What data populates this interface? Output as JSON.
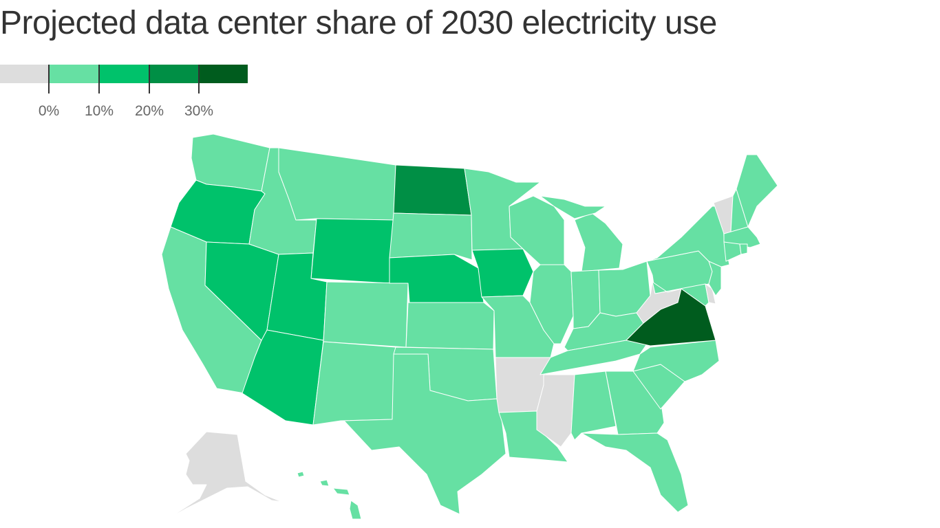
{
  "title": "Projected data center share of 2030 electricity use",
  "legend": {
    "bins": [
      {
        "key": "none",
        "color": "#dddddd"
      },
      {
        "key": "0-10",
        "color": "#66e0a3"
      },
      {
        "key": "10-20",
        "color": "#00c26b"
      },
      {
        "key": "20-30",
        "color": "#008f45"
      },
      {
        "key": "30+",
        "color": "#005c1e"
      }
    ],
    "tick_labels": [
      "0%",
      "10%",
      "20%",
      "30%"
    ]
  },
  "states": {
    "WA": "0-10",
    "OR": "10-20",
    "CA": "0-10",
    "NV": "10-20",
    "ID": "0-10",
    "MT": "0-10",
    "WY": "10-20",
    "UT": "10-20",
    "AZ": "10-20",
    "CO": "0-10",
    "NM": "0-10",
    "ND": "20-30",
    "SD": "0-10",
    "NE": "10-20",
    "KS": "0-10",
    "OK": "0-10",
    "TX": "0-10",
    "MN": "0-10",
    "IA": "10-20",
    "MO": "0-10",
    "AR": "none",
    "LA": "0-10",
    "WI": "0-10",
    "IL": "0-10",
    "MI": "0-10",
    "IN": "0-10",
    "OH": "0-10",
    "KY": "0-10",
    "TN": "0-10",
    "MS": "none",
    "AL": "0-10",
    "GA": "0-10",
    "FL": "0-10",
    "SC": "0-10",
    "NC": "0-10",
    "VA": "30+",
    "WV": "none",
    "PA": "0-10",
    "MD": "0-10",
    "DE": "none",
    "NJ": "0-10",
    "NY": "0-10",
    "VT": "none",
    "NH": "0-10",
    "ME": "0-10",
    "MA": "0-10",
    "CT": "0-10",
    "RI": "0-10",
    "AK": "none",
    "HI": "0-10"
  }
}
